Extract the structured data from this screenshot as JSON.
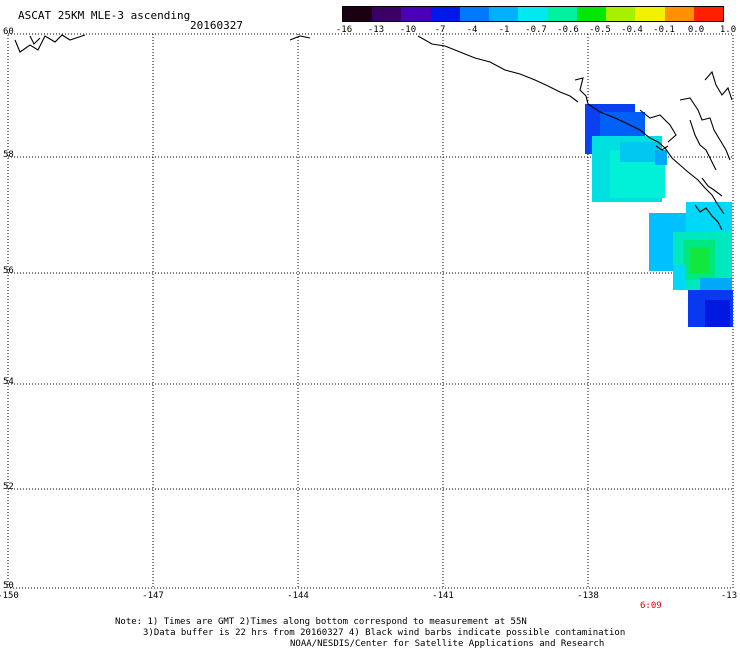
{
  "title": "ASCAT 25KM MLE-3 ascending",
  "date": "20160327",
  "colorbar": {
    "labels": [
      "-16",
      "-13",
      "-10",
      "-7",
      "-4",
      "-1",
      "-0.7",
      "-0.6",
      "-0.5",
      "-0.4",
      "-0.1",
      "0.0",
      "1.0"
    ],
    "colors": [
      "#1a0010",
      "#3a0066",
      "#4a00b8",
      "#0018e8",
      "#0078ff",
      "#00b0ff",
      "#00e8f0",
      "#00f0a0",
      "#00e800",
      "#a8f000",
      "#f0f000",
      "#ff9000",
      "#ff2000"
    ]
  },
  "map": {
    "lat_labels": [
      "60",
      "58",
      "56",
      "54",
      "52",
      "50"
    ],
    "lon_labels": [
      "-150",
      "-147",
      "-144",
      "-141",
      "-138",
      "-13"
    ],
    "pass_time": "6:09"
  },
  "notes": {
    "line1": "Note: 1) Times are GMT 2)Times along bottom correspond to measurement at 55N",
    "line2": "3)Data buffer is 22 hrs from 20160327 4) Black wind barbs indicate possible contamination",
    "line3": "NOAA/NESDIS/Center for Satellite Applications and Research"
  }
}
